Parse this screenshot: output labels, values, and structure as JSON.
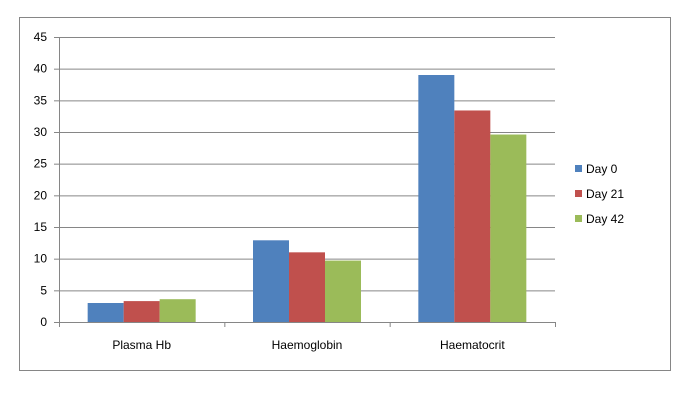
{
  "chart_data": {
    "type": "bar",
    "title": "",
    "xlabel": "",
    "ylabel": "",
    "categories": [
      "Plasma Hb",
      "Haemoglobin",
      "Haematocrit"
    ],
    "series": [
      {
        "name": "Day 0",
        "color": "#4F81BD",
        "values": [
          3.0,
          12.9,
          39.0
        ]
      },
      {
        "name": "Day 21",
        "color": "#C0504D",
        "values": [
          3.3,
          11.0,
          33.4
        ]
      },
      {
        "name": "Day 42",
        "color": "#9BBB59",
        "values": [
          3.6,
          9.7,
          29.6
        ]
      }
    ],
    "ylim": [
      0,
      45
    ],
    "yticks": [
      0,
      5,
      10,
      15,
      20,
      25,
      30,
      35,
      40,
      45
    ],
    "grid": true,
    "legend_position": "right"
  }
}
